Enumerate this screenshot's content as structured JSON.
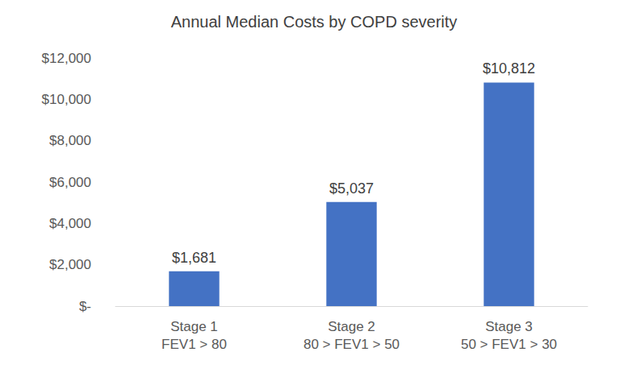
{
  "chart_data": {
    "type": "bar",
    "title": "Annual Median Costs by COPD severity",
    "categories": [
      "Stage 1\nFEV1 > 80",
      "Stage 2\n80 > FEV1 > 50",
      "Stage 3\n50 > FEV1 > 30"
    ],
    "values": [
      1681,
      5037,
      10812
    ],
    "value_labels": [
      "$1,681",
      "$5,037",
      "$10,812"
    ],
    "data_labels": true,
    "color": "#4472c4",
    "ylim": [
      0,
      12000
    ],
    "yticks": [
      {
        "value": 0,
        "label": "$-"
      },
      {
        "value": 2000,
        "label": "$2,000"
      },
      {
        "value": 4000,
        "label": "$4,000"
      },
      {
        "value": 6000,
        "label": "$6,000"
      },
      {
        "value": 8000,
        "label": "$8,000"
      },
      {
        "value": 10000,
        "label": "$10,000"
      },
      {
        "value": 12000,
        "label": "$12,000"
      }
    ],
    "grid": false
  }
}
